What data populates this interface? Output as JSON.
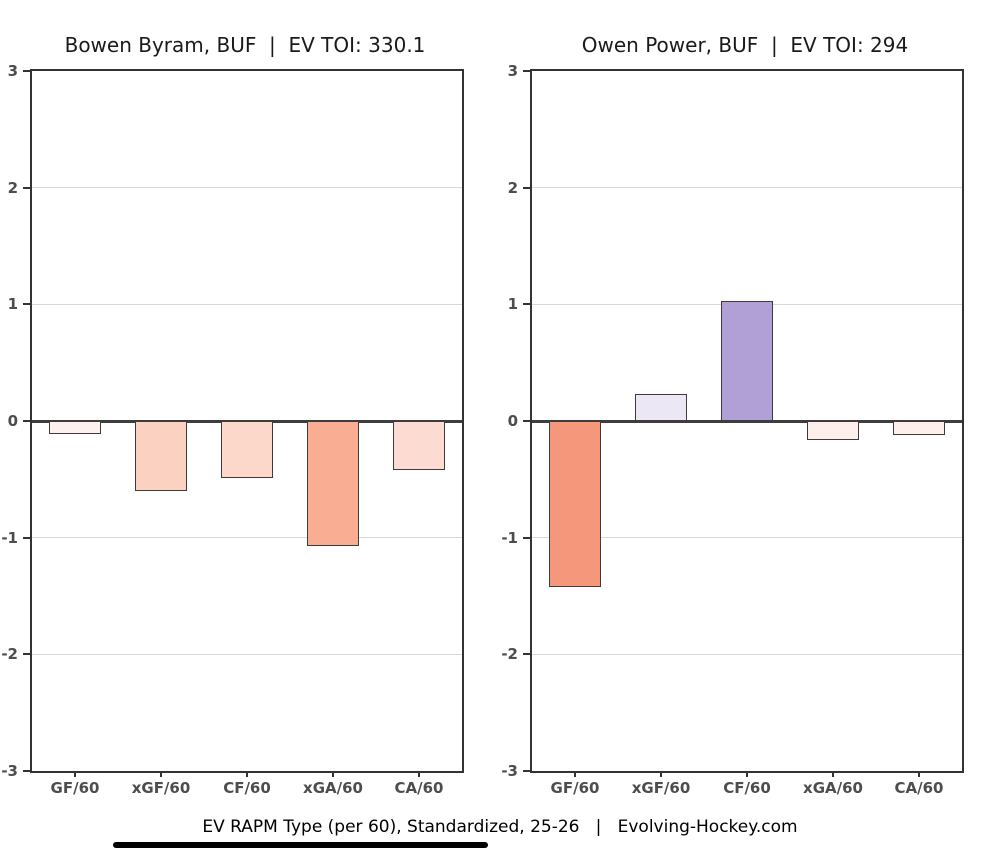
{
  "figure": {
    "caption": "EV RAPM Type (per 60), Standardized, 25-26   |   Evolving-Hockey.com",
    "background": "#ffffff"
  },
  "style": {
    "grid_color": "#d9d9d9",
    "axis_border_color": "#333333",
    "zero_line_color": "#3d3d3d",
    "tick_label_color": "#4d4d4d",
    "title_color": "#1a1a1a",
    "bar_border_color": "#413a38",
    "underline_color": "#000000",
    "negative_strong": "#f4977a",
    "positive_strong": "#b1a0d6"
  },
  "chart_data": [
    {
      "type": "bar",
      "title": "Bowen Byram, BUF  |  EV TOI: 330.1",
      "player": "Bowen Byram",
      "team": "BUF",
      "ev_toi": "330.1",
      "categories": [
        "GF/60",
        "xGF/60",
        "CF/60",
        "xGA/60",
        "CA/60"
      ],
      "values": [
        -0.11,
        -0.6,
        -0.49,
        -1.07,
        -0.42
      ],
      "bar_colors": [
        "#fdf1ef",
        "#fbd1c2",
        "#fcd8cb",
        "#f9ad92",
        "#fcdcd2"
      ],
      "xlabel": "",
      "ylabel": "",
      "ylim": [
        -3,
        3
      ],
      "yticks": [
        3,
        2,
        1,
        0,
        -1,
        -2,
        -3
      ],
      "grid": true,
      "legend": null
    },
    {
      "type": "bar",
      "title": "Owen Power, BUF  |  EV TOI: 294",
      "player": "Owen Power",
      "team": "BUF",
      "ev_toi": "294",
      "categories": [
        "GF/60",
        "xGF/60",
        "CF/60",
        "xGA/60",
        "CA/60"
      ],
      "values": [
        -1.42,
        0.23,
        1.03,
        -0.16,
        -0.12
      ],
      "bar_colors": [
        "#f4977a",
        "#ece7f4",
        "#b1a0d6",
        "#fdefec",
        "#fdefec"
      ],
      "xlabel": "",
      "ylabel": "",
      "ylim": [
        -3,
        3
      ],
      "yticks": [
        3,
        2,
        1,
        0,
        -1,
        -2,
        -3
      ],
      "grid": true,
      "legend": null
    }
  ]
}
